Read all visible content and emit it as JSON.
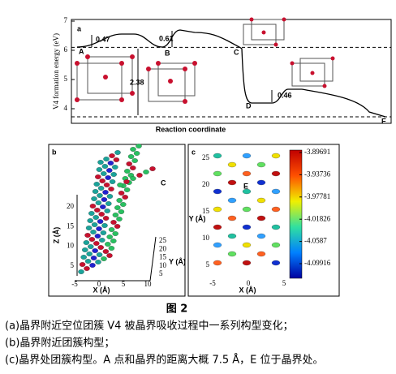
{
  "figure": {
    "panel_a": {
      "label": "a",
      "ylabel": "V4 formation energy (eV)",
      "xlabel": "Reaction coordinate",
      "yticks": [
        4,
        5,
        6,
        7
      ],
      "states": [
        "A",
        "B",
        "C",
        "D",
        "E"
      ],
      "barriers": [
        0.47,
        0.61,
        2.38,
        0.46
      ]
    },
    "panel_b": {
      "label": "b",
      "zlabel": "Z (Å)",
      "xlabel": "X (Å)",
      "ylabel": "Y (Å)",
      "zticks": [
        5,
        10,
        15,
        20
      ],
      "xticks": [
        -5,
        0,
        5,
        10
      ],
      "yticks": [
        5,
        10,
        15,
        20,
        25
      ],
      "point": "C"
    },
    "panel_c": {
      "label": "c",
      "ylabel": "Y (Å)",
      "xlabel": "X (Å)",
      "yticks": [
        5,
        10,
        15,
        20,
        25
      ],
      "xticks": [
        -5,
        0,
        5
      ],
      "point": "E",
      "colorbar_ticks": [
        -3.89691,
        -3.93736,
        -3.97781,
        -4.01826,
        -4.0587,
        -4.09916
      ]
    },
    "label": "图 2",
    "caption": [
      "(a)晶界附近空位团簇 V4 被晶界吸收过程中一系列构型变化；",
      "(b)晶界附近团簇构型；",
      "(c)晶界处团簇构型。A 点和晶界的距离大概 7.5 Å，E 位于晶界处。"
    ]
  }
}
